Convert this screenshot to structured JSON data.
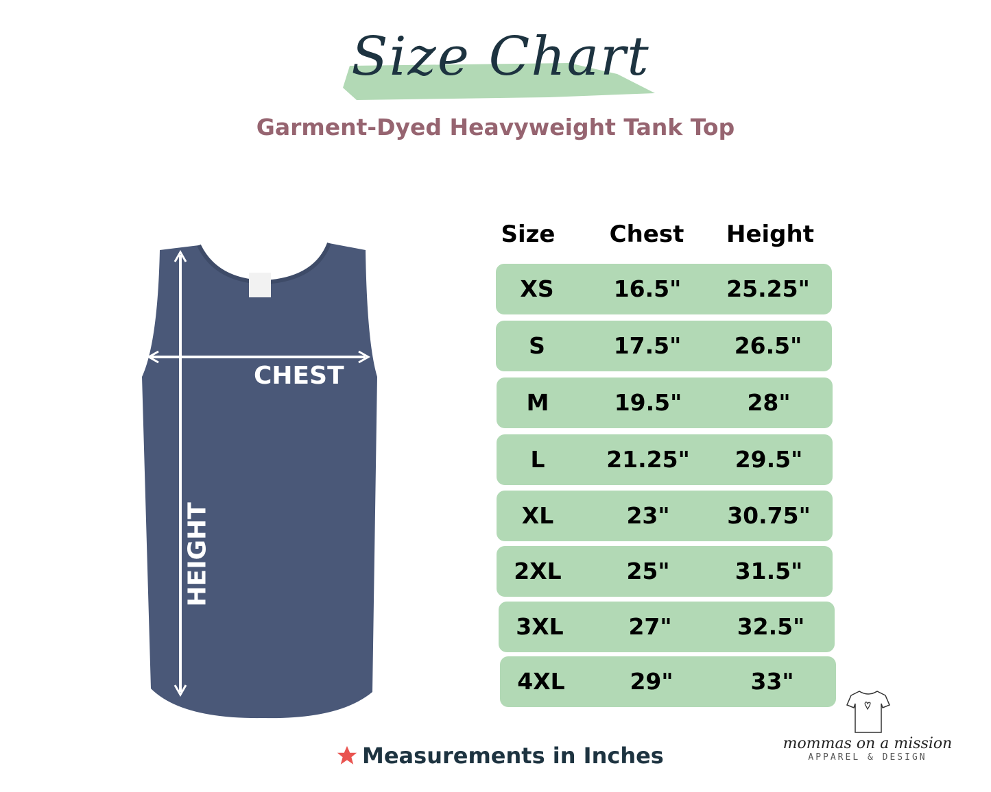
{
  "header": {
    "title": "Size Chart",
    "subtitle": "Garment-Dyed Heavyweight Tank Top"
  },
  "diagram": {
    "chest_label": "CHEST",
    "height_label": "HEIGHT",
    "garment_color": "#4a5878"
  },
  "table": {
    "columns": [
      "Size",
      "Chest",
      "Height"
    ],
    "rows": [
      [
        "XS",
        "16.5\"",
        "25.25\""
      ],
      [
        "S",
        "17.5\"",
        "26.5\""
      ],
      [
        "M",
        "19.5\"",
        "28\""
      ],
      [
        "L",
        "21.25\"",
        "29.5\""
      ],
      [
        "XL",
        "23\"",
        "30.75\""
      ],
      [
        "2XL",
        "25\"",
        "31.5\""
      ],
      [
        "3XL",
        "27\"",
        "32.5\""
      ],
      [
        "4XL",
        "29\"",
        "33\""
      ]
    ],
    "row_color": "#b2d9b5"
  },
  "footer": {
    "note": "Measurements in Inches",
    "note_icon": "star-icon",
    "star_color": "#e9534f"
  },
  "logo": {
    "name": "mommas on a mission",
    "tagline": "APPAREL & DESIGN"
  }
}
